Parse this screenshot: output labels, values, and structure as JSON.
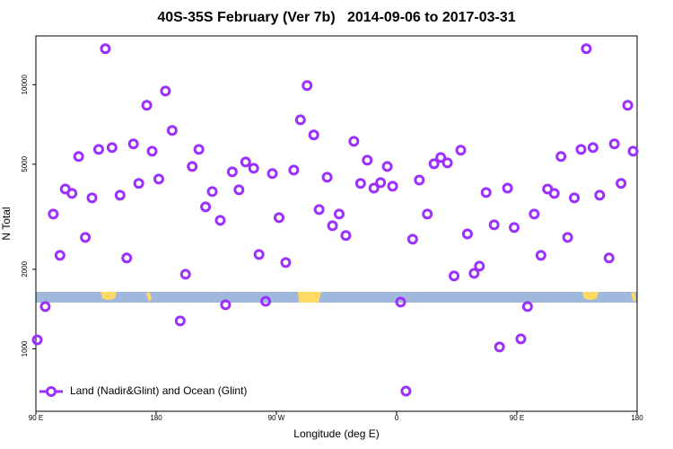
{
  "chart_data": {
    "type": "scatter",
    "title": "40S-35S February (Ver 7b)   2014-09-06 to 2017-03-31",
    "xlabel": "Longitude (deg E)",
    "ylabel": "N Total",
    "x": [
      91,
      97,
      103,
      108,
      112,
      117,
      122,
      127,
      132,
      137,
      142,
      147,
      153,
      158,
      163,
      167,
      173,
      177,
      182,
      187,
      192,
      198,
      202,
      207,
      212,
      217,
      222,
      228,
      232,
      237,
      242,
      247,
      253,
      257,
      262,
      267,
      272,
      277,
      283,
      288,
      293,
      298,
      302,
      308,
      312,
      317,
      322,
      328,
      333,
      338,
      343,
      348,
      353,
      357,
      363,
      367,
      372,
      377,
      383,
      388,
      393,
      398,
      403,
      408,
      413,
      418,
      422,
      427,
      433,
      437,
      443,
      448,
      453,
      458,
      463,
      468,
      473,
      478,
      483,
      488,
      493,
      498,
      502,
      507,
      512,
      519,
      523,
      528,
      533,
      537
    ],
    "series": [
      {
        "name": "Land (Nadir&Glint) and Ocean (Glint)",
        "color": "#9b30ff",
        "values": [
          1081,
          1445,
          3236,
          2259,
          4027,
          3877,
          5346,
          2642,
          3727,
          5689,
          13680,
          5781,
          3817,
          2207,
          5966,
          4227,
          8356,
          5598,
          4393,
          9465,
          6709,
          1275,
          1915,
          4900,
          5689,
          3446,
          3939,
          3064,
          1468,
          4677,
          3999,
          5096,
          4827,
          2275,
          1514,
          4607,
          3138,
          2122,
          4753,
          7362,
          9925,
          6456,
          3367,
          4462,
          2924,
          3236,
          2685,
          6103,
          4227,
          5180,
          4060,
          4258,
          4900,
          4127,
          1503,
          692,
          2600,
          4355,
          3236,
          5018,
          5302,
          5058,
          1888,
          5648,
          2723,
          1931,
          2056,
          3908,
          2946,
          1016,
          4060,
          2879,
          1090,
          1445,
          3236,
          2259,
          4027,
          3877,
          5346,
          2642,
          3727,
          5689,
          13680,
          5781,
          3817,
          2207,
          5966,
          4227,
          8356,
          5598
        ]
      }
    ],
    "xlim": [
      90,
      540
    ],
    "ylim": [
      580,
      15300
    ],
    "log_y": true,
    "legend": "lower left",
    "xticks": [
      {
        "value": 90,
        "label": "90 E"
      },
      180,
      {
        "value": 270,
        "label": "90 W"
      },
      {
        "value": 360,
        "label": "0"
      },
      {
        "value": 450,
        "label": "90 E"
      },
      {
        "value": 540,
        "label": "180"
      }
    ],
    "yticks": [
      1000,
      2000,
      5000,
      10000
    ]
  }
}
